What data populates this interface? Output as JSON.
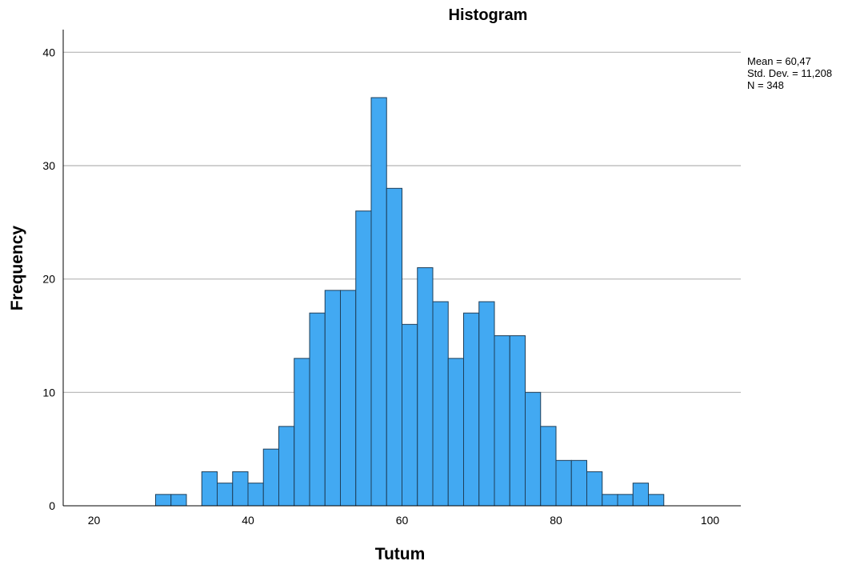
{
  "chart_data": {
    "type": "bar",
    "title": "Histogram",
    "xlabel": "Tutum",
    "ylabel": "Frequency",
    "xlim": [
      16,
      104
    ],
    "ylim": [
      0,
      42
    ],
    "x_ticks": [
      20,
      40,
      60,
      80,
      100
    ],
    "y_ticks": [
      0,
      10,
      20,
      30,
      40
    ],
    "bin_width": 2,
    "bins": [
      {
        "start": 28,
        "end": 30,
        "count": 1
      },
      {
        "start": 30,
        "end": 32,
        "count": 1
      },
      {
        "start": 32,
        "end": 34,
        "count": 0
      },
      {
        "start": 34,
        "end": 36,
        "count": 3
      },
      {
        "start": 36,
        "end": 38,
        "count": 2
      },
      {
        "start": 38,
        "end": 40,
        "count": 3
      },
      {
        "start": 40,
        "end": 42,
        "count": 2
      },
      {
        "start": 42,
        "end": 44,
        "count": 5
      },
      {
        "start": 44,
        "end": 46,
        "count": 7
      },
      {
        "start": 46,
        "end": 48,
        "count": 13
      },
      {
        "start": 48,
        "end": 50,
        "count": 17
      },
      {
        "start": 50,
        "end": 52,
        "count": 19
      },
      {
        "start": 52,
        "end": 54,
        "count": 19
      },
      {
        "start": 54,
        "end": 56,
        "count": 26
      },
      {
        "start": 56,
        "end": 58,
        "count": 36
      },
      {
        "start": 58,
        "end": 60,
        "count": 28
      },
      {
        "start": 60,
        "end": 62,
        "count": 16
      },
      {
        "start": 62,
        "end": 64,
        "count": 21
      },
      {
        "start": 64,
        "end": 66,
        "count": 18
      },
      {
        "start": 66,
        "end": 68,
        "count": 13
      },
      {
        "start": 68,
        "end": 70,
        "count": 17
      },
      {
        "start": 70,
        "end": 72,
        "count": 18
      },
      {
        "start": 72,
        "end": 74,
        "count": 15
      },
      {
        "start": 74,
        "end": 76,
        "count": 15
      },
      {
        "start": 76,
        "end": 78,
        "count": 10
      },
      {
        "start": 78,
        "end": 80,
        "count": 7
      },
      {
        "start": 80,
        "end": 82,
        "count": 4
      },
      {
        "start": 82,
        "end": 84,
        "count": 4
      },
      {
        "start": 84,
        "end": 86,
        "count": 3
      },
      {
        "start": 86,
        "end": 88,
        "count": 1
      },
      {
        "start": 88,
        "end": 90,
        "count": 1
      },
      {
        "start": 90,
        "end": 92,
        "count": 2
      },
      {
        "start": 92,
        "end": 94,
        "count": 1
      }
    ],
    "grid": true,
    "bar_color": "#42a9f2",
    "bar_edge_color": "#1e3f5a",
    "stats": {
      "mean": "Mean = 60,47",
      "std_dev": "Std. Dev. = 11,208",
      "n": "N = 348"
    },
    "stats_placement": "top-right"
  }
}
